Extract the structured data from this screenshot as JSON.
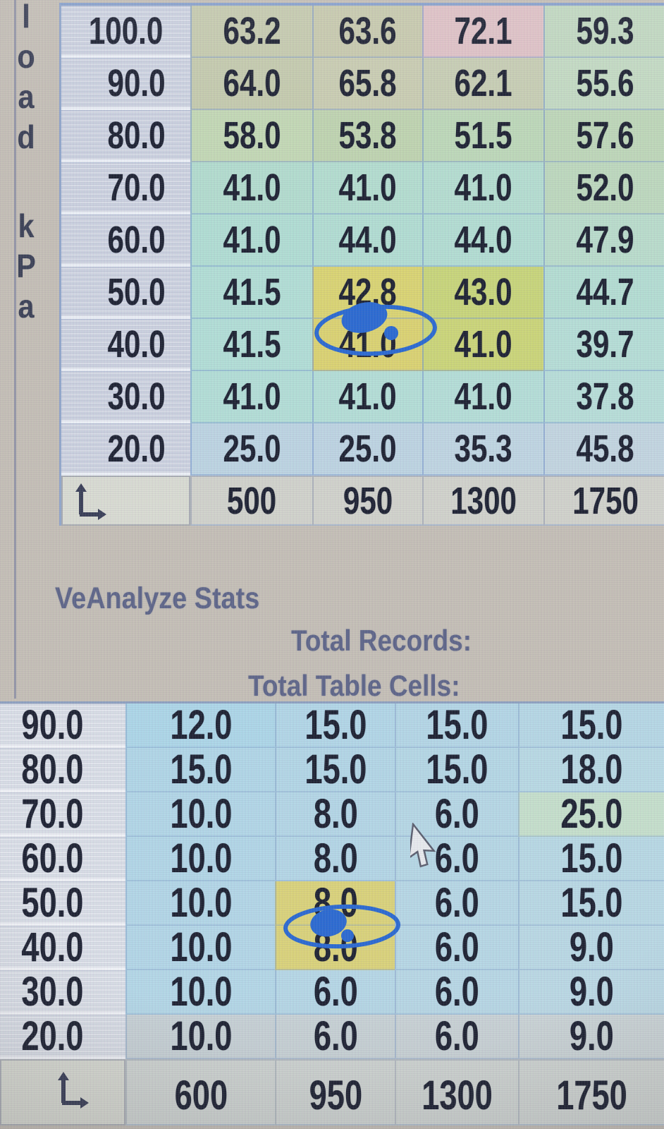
{
  "vertical_axis_label": {
    "text": "load kPa",
    "letters": [
      "l",
      "o",
      "a",
      "d",
      "k",
      "P",
      "a"
    ]
  },
  "stats_panel": {
    "title": "VeAnalyze Stats",
    "total_records_label": "Total Records:",
    "total_table_cells_label": "Total Table Cells:"
  },
  "colors": {
    "highlight_yellow": "#ded673",
    "highlight_pink": "#e3c5c9",
    "annotation_blue": "#2a6ad4",
    "grid_blue": "#7d9ed8",
    "photo_background": "#c8c2b9"
  },
  "top_table": {
    "y_axis": "load kPa",
    "col_headers": [
      "500",
      "950",
      "1300",
      "1750"
    ],
    "rows": [
      {
        "h": "100.0",
        "cells": [
          {
            "v": "63.2",
            "bg": "#c9ceb1"
          },
          {
            "v": "63.6",
            "bg": "#cbcdb0"
          },
          {
            "v": "72.1",
            "bg": "#e3c5c9"
          },
          {
            "v": "59.3",
            "bg": "#c5dcc4"
          }
        ]
      },
      {
        "h": "90.0",
        "cells": [
          {
            "v": "64.0",
            "bg": "#c8ceb0"
          },
          {
            "v": "65.8",
            "bg": "#cdd0b4"
          },
          {
            "v": "62.1",
            "bg": "#cbd1b6"
          },
          {
            "v": "55.6",
            "bg": "#c7dec6"
          }
        ]
      },
      {
        "h": "80.0",
        "cells": [
          {
            "v": "58.0",
            "bg": "#c7dcb8"
          },
          {
            "v": "53.8",
            "bg": "#c3d8b3"
          },
          {
            "v": "51.5",
            "bg": "#c1dcbc"
          },
          {
            "v": "57.6",
            "bg": "#c2dbbc"
          }
        ]
      },
      {
        "h": "70.0",
        "cells": [
          {
            "v": "41.0",
            "bg": "#b6e0d2"
          },
          {
            "v": "41.0",
            "bg": "#b7e1d3"
          },
          {
            "v": "41.0",
            "bg": "#b8e1d4"
          },
          {
            "v": "52.0",
            "bg": "#c1dcc1"
          }
        ]
      },
      {
        "h": "60.0",
        "cells": [
          {
            "v": "41.0",
            "bg": "#b4e1d7"
          },
          {
            "v": "44.0",
            "bg": "#b5e1d6"
          },
          {
            "v": "44.0",
            "bg": "#b6e1d6"
          },
          {
            "v": "47.9",
            "bg": "#bde0cf"
          }
        ]
      },
      {
        "h": "50.0",
        "cells": [
          {
            "v": "41.5",
            "bg": "#b5e2d9"
          },
          {
            "v": "42.8",
            "bg": "#ded874"
          },
          {
            "v": "43.0",
            "bg": "#ccd97c"
          },
          {
            "v": "44.7",
            "bg": "#b7e1d6"
          }
        ]
      },
      {
        "h": "40.0",
        "cells": [
          {
            "v": "41.5",
            "bg": "#b5e2da"
          },
          {
            "v": "41.0",
            "bg": "#dfd673"
          },
          {
            "v": "41.0",
            "bg": "#cfd97a"
          },
          {
            "v": "39.7",
            "bg": "#b9e2da"
          }
        ]
      },
      {
        "h": "30.0",
        "cells": [
          {
            "v": "41.0",
            "bg": "#b6e2da"
          },
          {
            "v": "41.0",
            "bg": "#b7e2da"
          },
          {
            "v": "41.0",
            "bg": "#b8e2db"
          },
          {
            "v": "37.8",
            "bg": "#bbe2dc"
          }
        ]
      },
      {
        "h": "20.0",
        "cells": [
          {
            "v": "25.0",
            "bg": "#c0d8e6"
          },
          {
            "v": "25.0",
            "bg": "#c1d8e6"
          },
          {
            "v": "35.3",
            "bg": "#c3d9e6"
          },
          {
            "v": "45.8",
            "bg": "#c6d9e4"
          }
        ]
      }
    ]
  },
  "bottom_table": {
    "col_headers": [
      "600",
      "950",
      "1300",
      "1750"
    ],
    "rows": [
      {
        "h": "90.0",
        "cells": [
          {
            "v": "12.0",
            "bg": "#b0daec"
          },
          {
            "v": "15.0",
            "bg": "#b5daeb"
          },
          {
            "v": "15.0",
            "bg": "#b7daea"
          },
          {
            "v": "15.0",
            "bg": "#b9dbe9"
          }
        ]
      },
      {
        "h": "80.0",
        "cells": [
          {
            "v": "15.0",
            "bg": "#b4daeb"
          },
          {
            "v": "15.0",
            "bg": "#b6daea"
          },
          {
            "v": "15.0",
            "bg": "#b8dbe9"
          },
          {
            "v": "18.0",
            "bg": "#bcdde8"
          }
        ]
      },
      {
        "h": "70.0",
        "cells": [
          {
            "v": "10.0",
            "bg": "#b5daeb"
          },
          {
            "v": "8.0",
            "bg": "#b7daea"
          },
          {
            "v": "6.0",
            "bg": "#b9dbe9"
          },
          {
            "v": "25.0",
            "bg": "#c9e3cf"
          }
        ]
      },
      {
        "h": "60.0",
        "cells": [
          {
            "v": "10.0",
            "bg": "#b5daeb"
          },
          {
            "v": "8.0",
            "bg": "#b7daea"
          },
          {
            "v": "6.0",
            "bg": "#b9dbe9"
          },
          {
            "v": "15.0",
            "bg": "#bbdce8"
          }
        ]
      },
      {
        "h": "50.0",
        "cells": [
          {
            "v": "10.0",
            "bg": "#b6daeb"
          },
          {
            "v": "8.0",
            "bg": "#ded67c"
          },
          {
            "v": "6.0",
            "bg": "#badbe9"
          },
          {
            "v": "15.0",
            "bg": "#bcdce8"
          }
        ]
      },
      {
        "h": "40.0",
        "cells": [
          {
            "v": "10.0",
            "bg": "#b6daeb"
          },
          {
            "v": "8.0",
            "bg": "#ded67c"
          },
          {
            "v": "6.0",
            "bg": "#badbe9"
          },
          {
            "v": "9.0",
            "bg": "#bddce8"
          }
        ]
      },
      {
        "h": "30.0",
        "cells": [
          {
            "v": "10.0",
            "bg": "#b7dbeb"
          },
          {
            "v": "6.0",
            "bg": "#b9dbea"
          },
          {
            "v": "6.0",
            "bg": "#bbdbe9"
          },
          {
            "v": "9.0",
            "bg": "#bedce8"
          }
        ]
      },
      {
        "h": "20.0",
        "cells": [
          {
            "v": "10.0",
            "bg": "#ccd6da"
          },
          {
            "v": "6.0",
            "bg": "#cdd7da"
          },
          {
            "v": "6.0",
            "bg": "#ced7da"
          },
          {
            "v": "9.0",
            "bg": "#cfd8da"
          }
        ]
      }
    ]
  }
}
